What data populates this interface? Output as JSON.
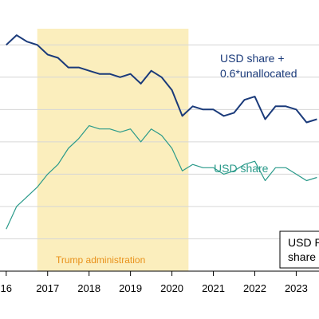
{
  "chart_data": {
    "type": "line",
    "grid": true,
    "x_ticks": [
      "16",
      "2017",
      "2018",
      "2019",
      "2020",
      "2021",
      "2022",
      "2023"
    ],
    "series": [
      {
        "key": "usd_plus_unallocated",
        "color": "#1a3a7a",
        "x": [
          2016.0,
          2016.25,
          2016.5,
          2016.75,
          2017.0,
          2017.25,
          2017.5,
          2017.75,
          2018.0,
          2018.25,
          2018.5,
          2018.75,
          2019.0,
          2019.25,
          2019.5,
          2019.75,
          2020.0,
          2020.25,
          2020.5,
          2020.75,
          2021.0,
          2021.25,
          2021.5,
          2021.75,
          2022.0,
          2022.25,
          2022.5,
          2022.75,
          2023.0,
          2023.25,
          2023.5
        ],
        "values": [
          66.0,
          66.3,
          66.1,
          66.0,
          65.7,
          65.6,
          65.3,
          65.3,
          65.2,
          65.1,
          65.1,
          65.0,
          65.1,
          64.8,
          65.2,
          65.0,
          64.6,
          63.8,
          64.1,
          64.0,
          64.0,
          63.8,
          63.9,
          64.3,
          64.4,
          63.7,
          64.1,
          64.1,
          64.0,
          63.6,
          63.7
        ]
      },
      {
        "key": "usd_share",
        "color": "#2a9a8a",
        "x": [
          2016.0,
          2016.25,
          2016.5,
          2016.75,
          2017.0,
          2017.25,
          2017.5,
          2017.75,
          2018.0,
          2018.25,
          2018.5,
          2018.75,
          2019.0,
          2019.25,
          2019.5,
          2019.75,
          2020.0,
          2020.25,
          2020.5,
          2020.75,
          2021.0,
          2021.25,
          2021.5,
          2021.75,
          2022.0,
          2022.25,
          2022.5,
          2022.75,
          2023.0,
          2023.25,
          2023.5
        ],
        "values": [
          60.3,
          61.0,
          61.3,
          61.6,
          62.0,
          62.3,
          62.8,
          63.1,
          63.5,
          63.4,
          63.4,
          63.3,
          63.4,
          63.0,
          63.4,
          63.2,
          62.8,
          62.1,
          62.3,
          62.2,
          62.2,
          62.0,
          62.1,
          62.3,
          62.4,
          61.8,
          62.2,
          62.2,
          62.0,
          61.8,
          61.9
        ]
      }
    ],
    "xlim": [
      2015.85,
      2023.55
    ],
    "ylim": [
      59.0,
      66.5
    ],
    "shaded_region": {
      "x_start": 2016.75,
      "x_end": 2020.4,
      "color": "#fbeebd"
    }
  },
  "annotations": {
    "usd_plus_line1": "USD share +",
    "usd_plus_line2": "0.6*unallocated",
    "usd_share": "USD share",
    "shade_label": "Trump administration",
    "legend_line1": "USD R",
    "legend_line2": "share"
  },
  "colors": {
    "dark_series": "#1a3a7a",
    "light_series": "#2a9a8a",
    "shade_text": "#e8911a"
  }
}
